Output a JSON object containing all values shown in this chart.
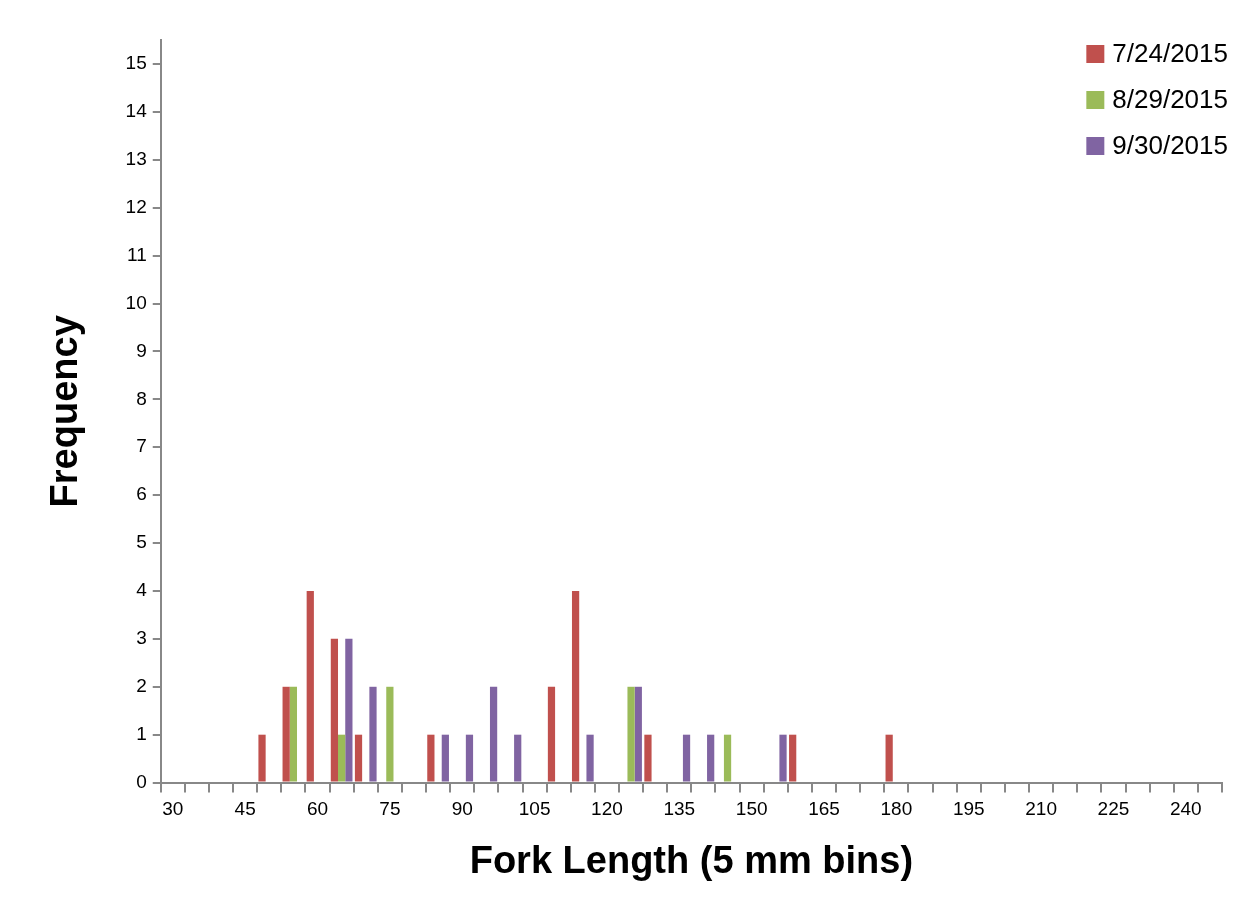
{
  "chart_data": {
    "type": "bar",
    "xlabel": "Fork Length (5 mm bins)",
    "ylabel": "Frequency",
    "categories": [
      "30",
      null,
      null,
      "45",
      null,
      null,
      "60",
      null,
      null,
      "75",
      null,
      null,
      "90",
      null,
      null,
      "105",
      null,
      null,
      "120",
      null,
      null,
      "135",
      null,
      null,
      "150",
      null,
      null,
      "165",
      null,
      null,
      "180",
      null,
      null,
      "195",
      null,
      null,
      "210",
      null,
      null,
      "225",
      null,
      null,
      "240",
      null
    ],
    "series": [
      {
        "name": "7/24/2015",
        "color": "#c0504d",
        "values": [
          0,
          0,
          0,
          0,
          1,
          2,
          4,
          3,
          1,
          0,
          0,
          1,
          0,
          0,
          0,
          0,
          2,
          4,
          0,
          0,
          1,
          0,
          0,
          0,
          0,
          0,
          1,
          0,
          0,
          0,
          1,
          0,
          0,
          0,
          0,
          0,
          0,
          0,
          0,
          0,
          0,
          0,
          0,
          0
        ]
      },
      {
        "name": "8/29/2015",
        "color": "#9bbb59",
        "values": [
          0,
          0,
          0,
          0,
          0,
          2,
          0,
          1,
          0,
          2,
          0,
          0,
          0,
          0,
          0,
          0,
          0,
          0,
          0,
          2,
          0,
          0,
          0,
          1,
          0,
          0,
          0,
          0,
          0,
          0,
          0,
          0,
          0,
          0,
          0,
          0,
          0,
          0,
          0,
          0,
          0,
          0,
          0,
          0
        ]
      },
      {
        "name": "9/30/2015",
        "color": "#8064a2",
        "values": [
          0,
          0,
          0,
          0,
          0,
          0,
          0,
          3,
          2,
          0,
          0,
          1,
          1,
          2,
          1,
          0,
          0,
          1,
          0,
          2,
          0,
          1,
          1,
          0,
          0,
          1,
          0,
          0,
          0,
          0,
          0,
          0,
          0,
          0,
          0,
          0,
          0,
          0,
          0,
          0,
          0,
          0,
          0,
          0
        ]
      }
    ],
    "ylim": [
      0,
      15.5
    ],
    "yticks": [
      0,
      1,
      2,
      3,
      4,
      5,
      6,
      7,
      8,
      9,
      10,
      11,
      12,
      13,
      14,
      15
    ],
    "grid": false,
    "legend": "top right"
  }
}
